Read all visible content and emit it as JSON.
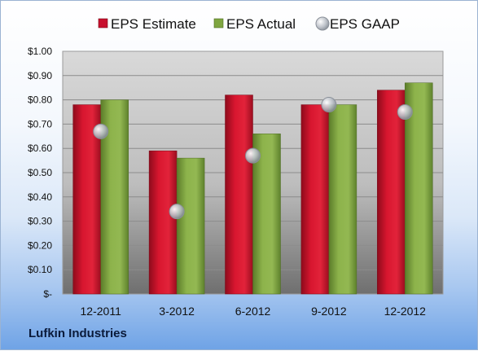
{
  "company": "Lufkin Industries",
  "colors": {
    "estimate": "#c8102e",
    "actual": "#7fa640",
    "gaap": "#b9bec6"
  },
  "chart_data": {
    "type": "bar",
    "categories": [
      "12-2011",
      "3-2012",
      "6-2012",
      "9-2012",
      "12-2012"
    ],
    "series": [
      {
        "name": "EPS Estimate",
        "kind": "bar",
        "values": [
          0.78,
          0.59,
          0.82,
          0.78,
          0.84
        ]
      },
      {
        "name": "EPS Actual",
        "kind": "bar",
        "values": [
          0.8,
          0.56,
          0.66,
          0.78,
          0.87
        ]
      },
      {
        "name": "EPS GAAP",
        "kind": "scatter",
        "values": [
          0.67,
          0.34,
          0.57,
          0.78,
          0.75
        ]
      }
    ],
    "ylim": [
      0,
      1.0
    ],
    "yticks": [
      {
        "value": 1.0,
        "label": "$1.00"
      },
      {
        "value": 0.9,
        "label": "$0.90"
      },
      {
        "value": 0.8,
        "label": "$0.80"
      },
      {
        "value": 0.7,
        "label": "$0.70"
      },
      {
        "value": 0.6,
        "label": "$0.60"
      },
      {
        "value": 0.5,
        "label": "$0.50"
      },
      {
        "value": 0.4,
        "label": "$0.40"
      },
      {
        "value": 0.3,
        "label": "$0.30"
      },
      {
        "value": 0.2,
        "label": "$0.20"
      },
      {
        "value": 0.1,
        "label": "$0.10"
      },
      {
        "value": 0.0,
        "label": "$-"
      }
    ],
    "grid": true,
    "legend": "top"
  }
}
